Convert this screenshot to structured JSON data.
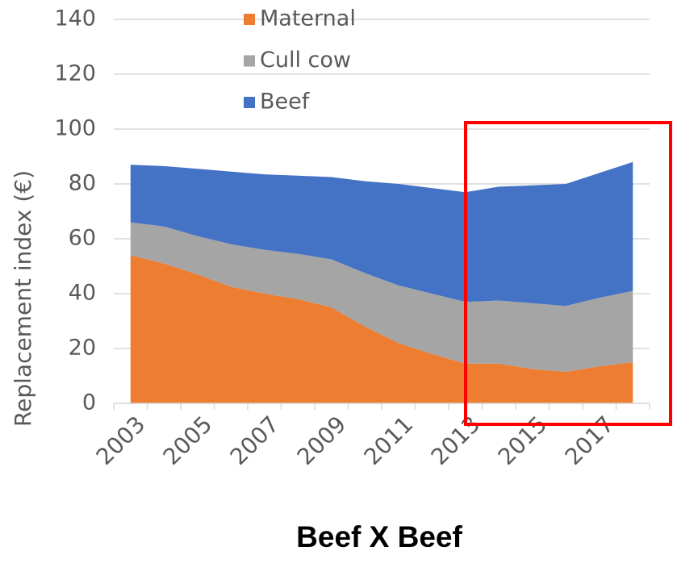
{
  "chart_data": {
    "type": "stacked-area",
    "title": "Beef X Beef",
    "ylabel": "Replacement index (€)",
    "categories": [
      "2003",
      null,
      "2005",
      null,
      "2007",
      null,
      "2009",
      null,
      "2011",
      null,
      "2013",
      null,
      "2015",
      null,
      "2017",
      null
    ],
    "series": [
      {
        "name": "Maternal",
        "color": "#ed7d31",
        "values": [
          54,
          51,
          47,
          42.5,
          40,
          38,
          35,
          28,
          22,
          18,
          14.5,
          14.5,
          12.5,
          11.5,
          13.5,
          15
        ]
      },
      {
        "name": "Cull cow",
        "color": "#a5a5a5",
        "values": [
          12,
          13.5,
          14,
          15.5,
          16,
          16.5,
          17.5,
          19.5,
          21,
          22,
          22.5,
          23,
          24,
          24,
          25,
          26
        ]
      },
      {
        "name": "Beef",
        "color": "#4472c4",
        "values": [
          21,
          22,
          24.5,
          26.5,
          27.5,
          28.5,
          30,
          33.5,
          37,
          38.5,
          40,
          41.5,
          43,
          44.5,
          45.5,
          47
        ]
      }
    ],
    "ylim": [
      0,
      140
    ],
    "yticks": [
      0,
      20,
      40,
      60,
      80,
      100,
      120,
      140
    ],
    "grid": true
  }
}
